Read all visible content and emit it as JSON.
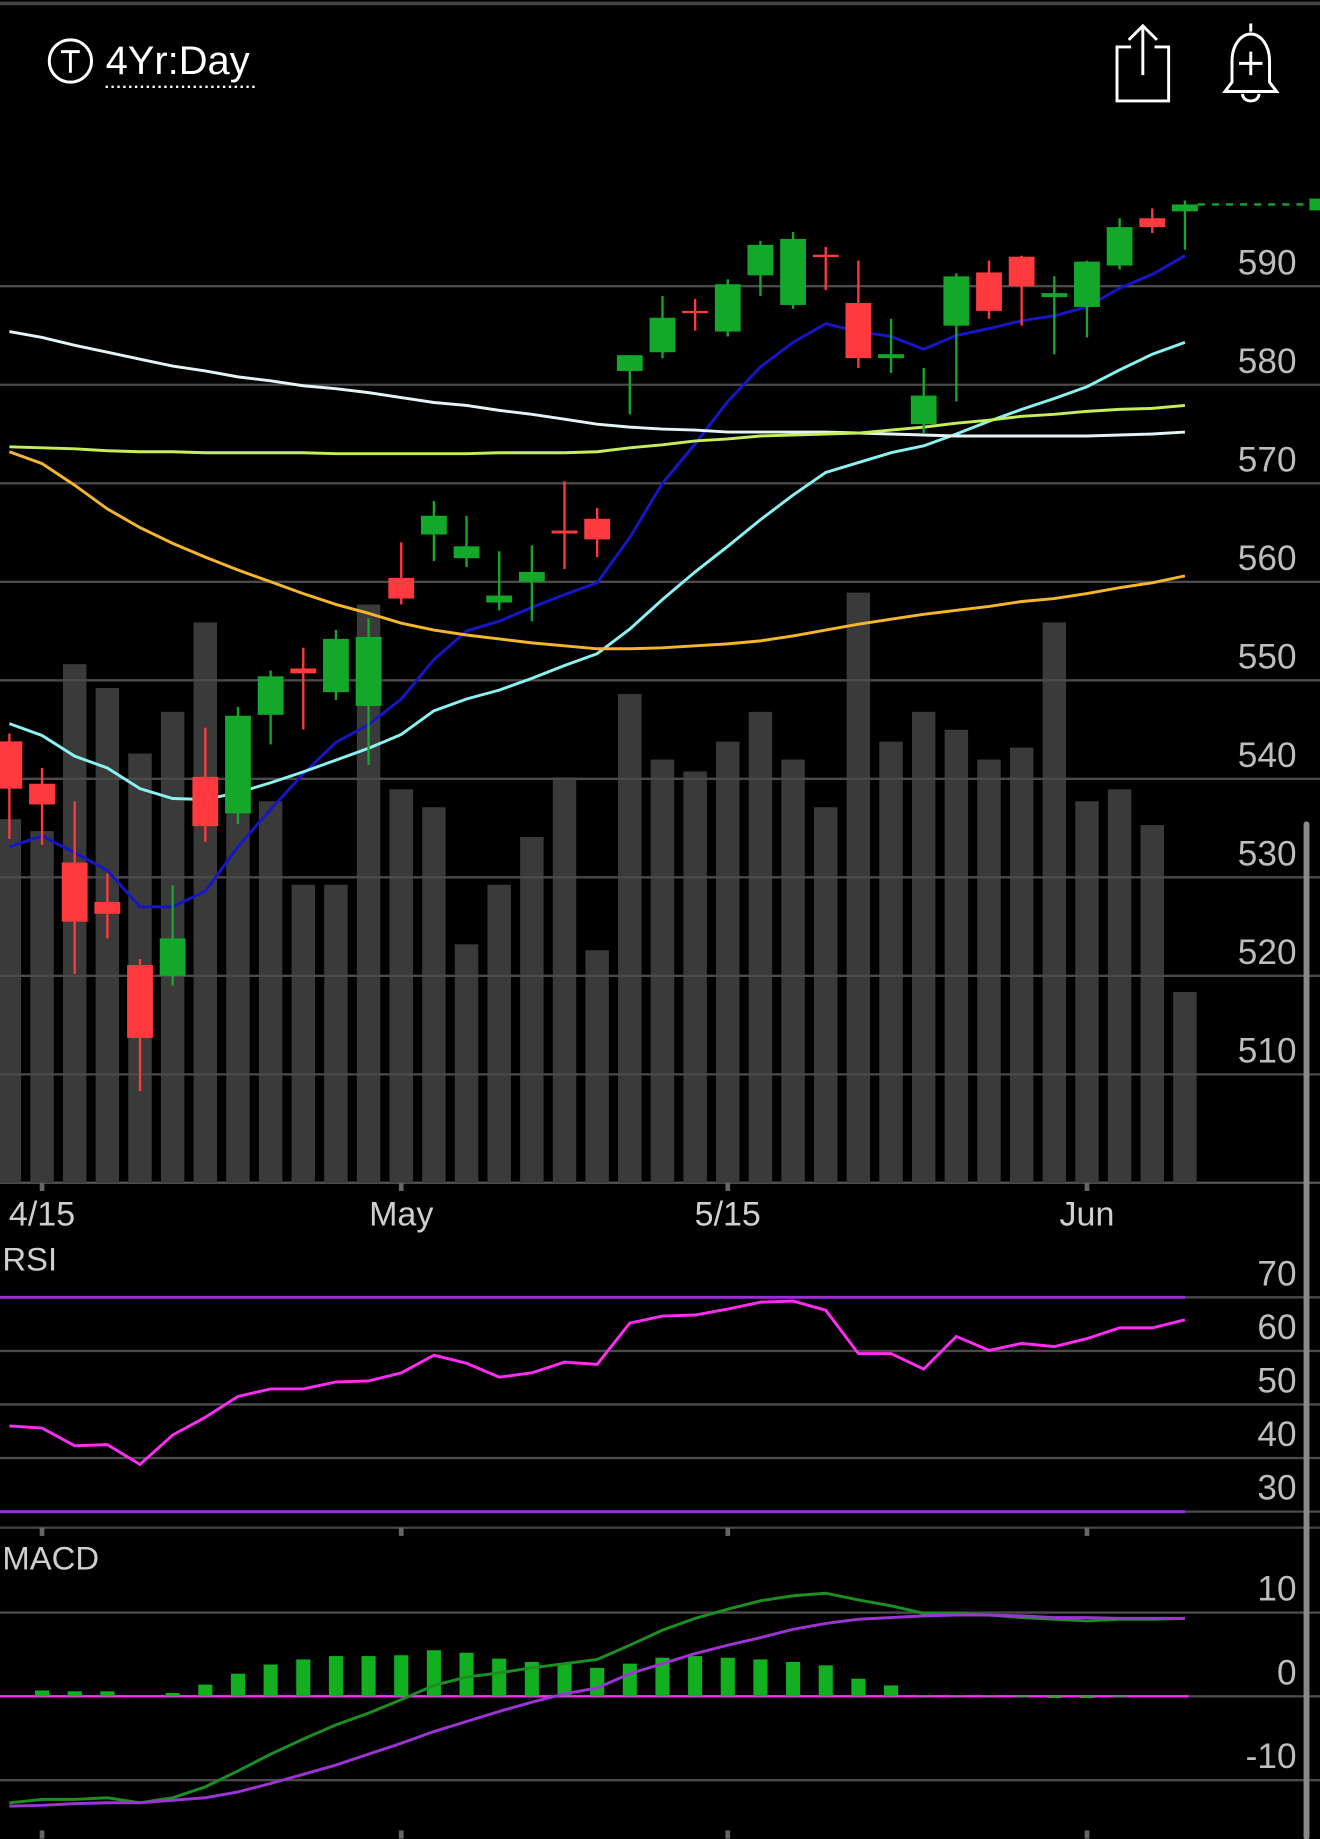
{
  "header": {
    "interval": "4Yr:Day"
  },
  "chart_data": [
    {
      "type": "candlestick",
      "categories": [
        null,
        "4/15",
        null,
        null,
        null,
        null,
        null,
        null,
        null,
        null,
        null,
        null,
        "May",
        null,
        null,
        null,
        null,
        null,
        null,
        null,
        null,
        null,
        "5/15",
        null,
        null,
        null,
        null,
        null,
        null,
        null,
        null,
        null,
        null,
        "Jun",
        null,
        null,
        null
      ],
      "open": [
        543.8,
        539.5,
        531.5,
        527.5,
        521.1,
        520.0,
        540.2,
        536.5,
        546.5,
        551.2,
        548.8,
        547.4,
        560.4,
        564.8,
        562.4,
        557.9,
        560.0,
        565.2,
        566.4,
        581.4,
        583.3,
        587.5,
        585.4,
        591.1,
        588.1,
        593.2,
        588.3,
        582.7,
        576.0,
        586.0,
        591.4,
        593.0,
        588.9,
        587.9,
        592.1,
        596.9,
        597.6
      ],
      "high": [
        544.6,
        541.1,
        537.7,
        530.4,
        521.7,
        529.2,
        545.2,
        547.3,
        551.0,
        553.3,
        555.1,
        556.3,
        564.0,
        568.2,
        566.7,
        563.1,
        563.7,
        570.2,
        567.5,
        583.0,
        589.0,
        588.7,
        590.7,
        594.6,
        595.5,
        594.0,
        592.6,
        586.7,
        581.7,
        591.3,
        592.6,
        593.1,
        591.0,
        592.6,
        596.9,
        597.9,
        598.7
      ],
      "low": [
        533.9,
        533.3,
        520.2,
        523.8,
        508.3,
        519.0,
        533.6,
        535.4,
        543.5,
        545.0,
        548.0,
        541.4,
        557.7,
        562.1,
        561.5,
        557.1,
        556.0,
        561.3,
        562.5,
        577.0,
        582.7,
        585.5,
        584.9,
        589.0,
        587.7,
        589.6,
        581.7,
        581.2,
        575.0,
        578.3,
        586.7,
        586.0,
        583.1,
        584.8,
        591.7,
        595.4,
        593.7
      ],
      "close": [
        539.0,
        537.4,
        525.5,
        526.3,
        513.7,
        523.8,
        535.2,
        546.4,
        550.4,
        550.7,
        554.2,
        554.4,
        558.3,
        566.7,
        563.6,
        558.6,
        561.0,
        564.9,
        564.3,
        583.0,
        586.8,
        587.3,
        590.2,
        594.2,
        594.8,
        593.0,
        582.7,
        583.1,
        578.9,
        591.0,
        587.5,
        590.0,
        589.3,
        592.5,
        596.0,
        596.0,
        598.3
      ],
      "up_color": "#14a82a",
      "down_color": "#ff3a3f",
      "volume": [
        61,
        59,
        87,
        83,
        72,
        79,
        94,
        78,
        64,
        50,
        50,
        97,
        66,
        63,
        40,
        50,
        58,
        68,
        39,
        82,
        71,
        69,
        74,
        79,
        71,
        63,
        99,
        74,
        79,
        76,
        71,
        73,
        94,
        64,
        66,
        60,
        32
      ],
      "volume_lim": [
        0,
        100
      ],
      "volume_color": "#3a3a3a",
      "series": [
        {
          "color": "#1616c8",
          "values": [
            533.1,
            534.2,
            532.5,
            530.7,
            527.0,
            527.0,
            528.6,
            533.1,
            536.9,
            540.5,
            543.7,
            545.5,
            548.1,
            552.1,
            555.0,
            556.0,
            557.4,
            558.7,
            559.9,
            564.5,
            570.0,
            574.0,
            578.3,
            581.8,
            584.3,
            586.2,
            585.4,
            584.9,
            583.6,
            585.0,
            585.7,
            586.5,
            587.0,
            587.9,
            589.8,
            591.2,
            593.1
          ]
        },
        {
          "color": "#8af2f0",
          "values": [
            545.6,
            544.4,
            542.3,
            541.1,
            539.0,
            538.0,
            537.9,
            538.6,
            539.6,
            540.7,
            541.9,
            543.1,
            544.5,
            546.9,
            548.1,
            549.0,
            550.2,
            551.5,
            552.7,
            555.2,
            558.2,
            561.0,
            563.6,
            566.3,
            568.8,
            571.1,
            572.1,
            573.1,
            573.8,
            575.0,
            576.3,
            577.5,
            578.6,
            579.8,
            581.5,
            583.1,
            584.3
          ]
        },
        {
          "color": "#e4f4f4",
          "values": [
            585.4,
            584.8,
            584.0,
            583.3,
            582.6,
            581.9,
            581.4,
            580.8,
            580.4,
            579.9,
            579.6,
            579.2,
            578.7,
            578.2,
            577.9,
            577.4,
            577.0,
            576.5,
            576.0,
            575.7,
            575.5,
            575.4,
            575.2,
            575.2,
            575.2,
            575.2,
            575.1,
            575.0,
            574.9,
            574.8,
            574.8,
            574.8,
            574.8,
            574.8,
            574.9,
            575.0,
            575.2
          ]
        },
        {
          "color": "#c6ee5c",
          "values": [
            573.7,
            573.6,
            573.5,
            573.3,
            573.2,
            573.2,
            573.1,
            573.1,
            573.1,
            573.1,
            573.0,
            573.0,
            573.0,
            573.0,
            573.0,
            573.1,
            573.1,
            573.1,
            573.2,
            573.6,
            573.9,
            574.3,
            574.5,
            574.8,
            574.9,
            575.0,
            575.1,
            575.4,
            575.7,
            576.1,
            576.4,
            576.8,
            577.0,
            577.3,
            577.5,
            577.6,
            577.9
          ]
        },
        {
          "color": "#f4b62c",
          "values": [
            573.2,
            572.0,
            569.8,
            567.4,
            565.5,
            563.9,
            562.5,
            561.2,
            560.0,
            558.8,
            557.7,
            556.8,
            555.8,
            555.1,
            554.6,
            554.2,
            553.8,
            553.5,
            553.2,
            553.2,
            553.3,
            553.5,
            553.7,
            554.0,
            554.5,
            555.1,
            555.7,
            556.2,
            556.7,
            557.1,
            557.5,
            558.0,
            558.3,
            558.8,
            559.4,
            559.9,
            560.6
          ]
        }
      ],
      "ylim": [
        499,
        605
      ],
      "yticks": [
        510,
        520,
        530,
        540,
        550,
        560,
        570,
        580,
        590
      ],
      "grid": true
    },
    {
      "type": "line",
      "title": "RSI",
      "series": [
        {
          "color": "#ff2cf2",
          "values": [
            46.0,
            45.6,
            42.3,
            42.5,
            38.8,
            44.3,
            47.6,
            51.5,
            52.9,
            52.9,
            54.2,
            54.4,
            55.9,
            59.2,
            57.7,
            55.1,
            55.9,
            57.9,
            57.5,
            65.2,
            66.5,
            66.7,
            67.8,
            69.1,
            69.3,
            67.6,
            59.5,
            59.5,
            56.6,
            62.7,
            60.1,
            61.4,
            60.8,
            62.3,
            64.3,
            64.3,
            65.8
          ]
        }
      ],
      "bands": [
        30,
        70
      ],
      "band_color": "#9a2fd4",
      "ylim": [
        27,
        80
      ],
      "yticks": [
        30,
        40,
        50,
        60,
        70
      ],
      "grid": true
    },
    {
      "type": "line",
      "title": "MACD",
      "series": [
        {
          "color": "#1c8f22",
          "values": [
            -12.7,
            -12.3,
            -12.3,
            -12.1,
            -12.7,
            -12.1,
            -10.8,
            -8.9,
            -6.9,
            -5.1,
            -3.4,
            -2.0,
            -0.4,
            1.3,
            2.3,
            2.8,
            3.4,
            3.9,
            4.4,
            6.1,
            7.9,
            9.3,
            10.4,
            11.4,
            12.0,
            12.3,
            11.5,
            10.8,
            9.9,
            9.9,
            9.7,
            9.4,
            9.2,
            9.0,
            9.2,
            9.2,
            9.3
          ]
        },
        {
          "color": "#9b34d2",
          "values": [
            -13.1,
            -13.0,
            -12.8,
            -12.7,
            -12.7,
            -12.4,
            -12.1,
            -11.4,
            -10.4,
            -9.3,
            -8.2,
            -6.9,
            -5.6,
            -4.2,
            -3.0,
            -1.8,
            -0.7,
            0.3,
            1.0,
            2.7,
            3.9,
            5.1,
            6.1,
            7.0,
            8.0,
            8.7,
            9.2,
            9.4,
            9.6,
            9.7,
            9.7,
            9.6,
            9.4,
            9.4,
            9.3,
            9.3,
            9.3
          ]
        }
      ],
      "histogram": {
        "color": "#12b020",
        "values": [
          0,
          0.7,
          0.6,
          0.6,
          0,
          0.4,
          1.4,
          2.7,
          3.8,
          4.4,
          4.8,
          4.8,
          4.9,
          5.5,
          5.2,
          4.5,
          4.1,
          3.9,
          3.4,
          3.9,
          4.6,
          4.8,
          4.6,
          4.4,
          4.1,
          3.7,
          2.1,
          1.3,
          0.1,
          0.1,
          0.1,
          -0.1,
          -0.2,
          -0.2,
          -0.1,
          0,
          0
        ]
      },
      "zero_line_color": "#ff2cf2",
      "ylim": [
        -16,
        19
      ],
      "yticks": [
        -10,
        0,
        10
      ],
      "grid": true
    }
  ]
}
